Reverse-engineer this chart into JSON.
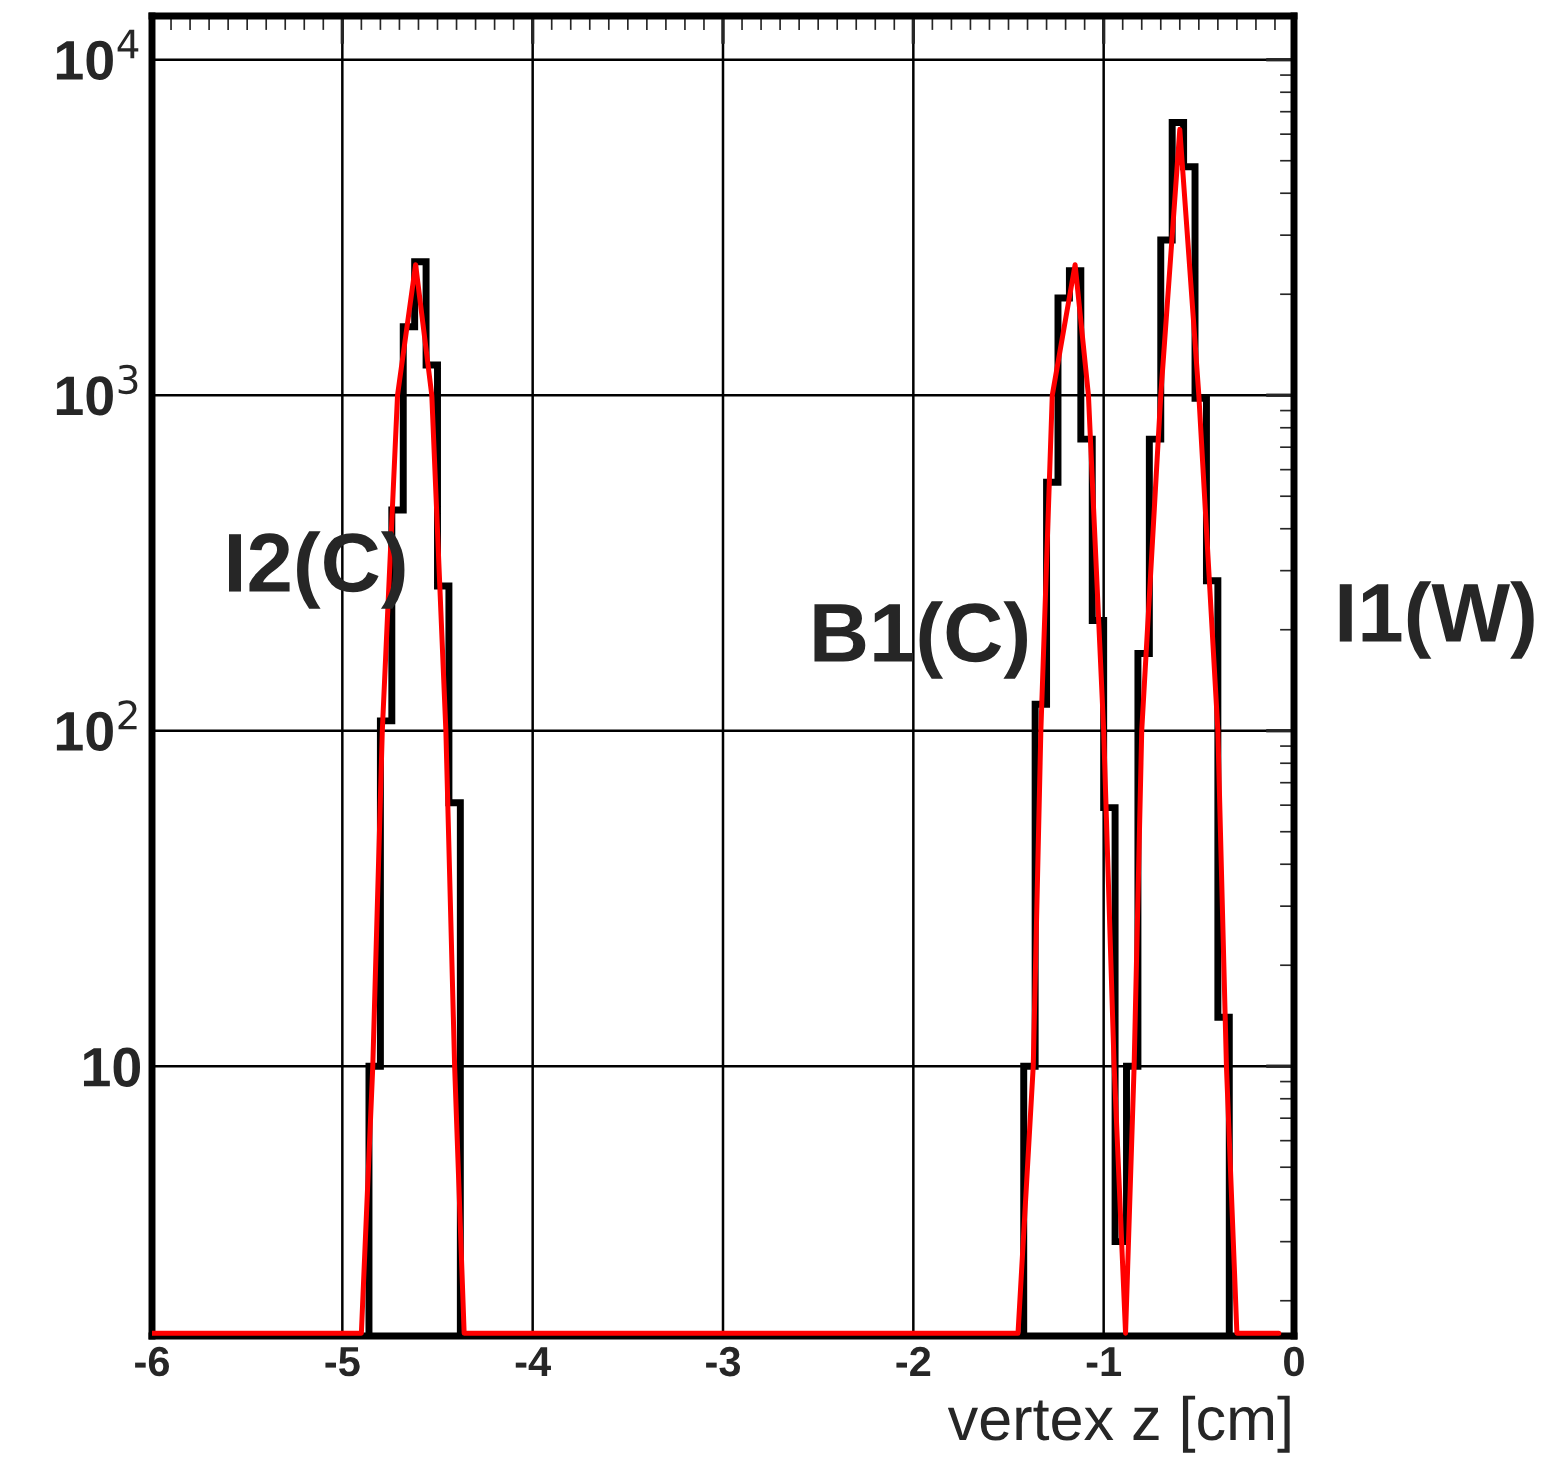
{
  "chart_data": {
    "type": "histogram",
    "xlabel": "vertex z [cm]",
    "bins": [
      -4.86,
      -4.8,
      -4.74,
      -4.68,
      -4.62,
      -4.56,
      -4.5,
      -4.44,
      -4.38,
      -1.42,
      -1.36,
      -1.3,
      -1.24,
      -1.18,
      -1.12,
      -1.06,
      -1.0,
      -0.94,
      -0.88,
      -0.82,
      -0.76,
      -0.7,
      -0.64,
      -0.58,
      -0.52,
      -0.46,
      -0.4,
      -0.34
    ],
    "values": [
      10,
      107,
      455,
      1600,
      2500,
      1230,
      270,
      61,
      null,
      10,
      120,
      550,
      1950,
      2350,
      740,
      213,
      59,
      3,
      10,
      170,
      740,
      2900,
      6500,
      4800,
      980,
      280,
      14
    ],
    "series": [
      {
        "type": "line",
        "color": "#ff0000",
        "x": [
          -6.0,
          -4.9,
          -4.84,
          -4.79,
          -4.71,
          -4.615,
          -4.53,
          -4.456,
          -4.41,
          -4.36,
          -1.45,
          -1.37,
          -1.33,
          -1.27,
          -1.15,
          -1.08,
          -1.0,
          -0.945,
          -0.885,
          -0.84,
          -0.8,
          -0.7,
          -0.6,
          -0.5,
          -0.4,
          -0.355,
          -0.3,
          -0.08
        ],
        "values": [
          1.6,
          1.6,
          10,
          100,
          1000,
          2450,
          1000,
          100,
          10,
          1.6,
          1.6,
          10,
          100,
          1000,
          2450,
          1000,
          100,
          10,
          1.6,
          10,
          100,
          1000,
          6200,
          1000,
          100,
          10,
          1.6,
          1.6
        ]
      }
    ],
    "color": "#000000",
    "xlim": [
      -6,
      0
    ],
    "xticks": [
      -6,
      -5,
      -4,
      -3,
      -2,
      -1,
      0
    ],
    "log": true,
    "ylim": [
      1.57,
      13500
    ],
    "yticks": [
      {
        "value": 10,
        "label": "10"
      },
      {
        "value": 100,
        "label": "10$^{2}$"
      },
      {
        "value": 1000,
        "label": "10$^{3}$"
      },
      {
        "value": 10000,
        "label": "10$^{4}$"
      }
    ],
    "grid": true,
    "annotations": [
      "I2(C)",
      "B1(C)",
      "I1(W)"
    ]
  }
}
